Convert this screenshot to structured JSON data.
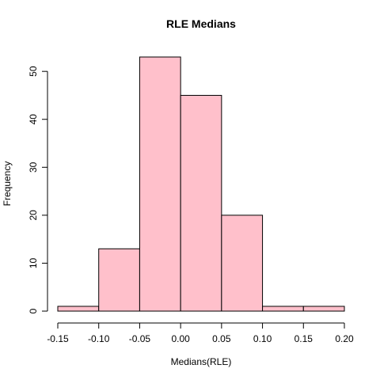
{
  "chart_data": {
    "type": "bar",
    "title": "RLE Medians",
    "xlabel": "Medians(RLE)",
    "ylabel": "Frequency",
    "bins": [
      {
        "start": -0.15,
        "end": -0.1,
        "count": 1
      },
      {
        "start": -0.1,
        "end": -0.05,
        "count": 13
      },
      {
        "start": -0.05,
        "end": 0.0,
        "count": 53
      },
      {
        "start": 0.0,
        "end": 0.05,
        "count": 45
      },
      {
        "start": 0.05,
        "end": 0.1,
        "count": 20
      },
      {
        "start": 0.1,
        "end": 0.15,
        "count": 1
      },
      {
        "start": 0.15,
        "end": 0.2,
        "count": 1
      }
    ],
    "xlim": [
      -0.15,
      0.2
    ],
    "ylim": [
      0,
      53
    ],
    "x_ticks": [
      -0.15,
      -0.1,
      -0.05,
      0.0,
      0.05,
      0.1,
      0.15,
      0.2
    ],
    "x_tick_labels": [
      "-0.15",
      "-0.10",
      "-0.05",
      "0.00",
      "0.05",
      "0.10",
      "0.15",
      "0.20"
    ],
    "y_ticks": [
      0,
      10,
      20,
      30,
      40,
      50
    ],
    "y_tick_labels": [
      "0",
      "10",
      "20",
      "30",
      "40",
      "50"
    ],
    "bar_color": "#ffc0cb",
    "grid": false
  }
}
